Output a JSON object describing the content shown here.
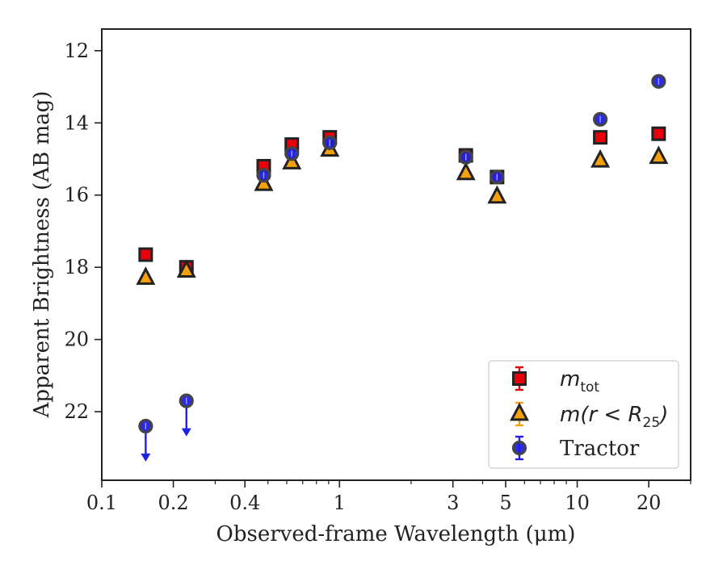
{
  "chart_data": {
    "type": "scatter",
    "xlabel": "Observed-frame Wavelength (μm)",
    "ylabel": "Apparent Brightness (AB mag)",
    "x_scale": "log",
    "xlim": [
      0.1,
      30
    ],
    "ylim": [
      23.9,
      11.4
    ],
    "y_inverted": true,
    "grid": false,
    "legend_position": "lower-right",
    "x_ticks": [
      {
        "value": 0.1,
        "label": "0.1"
      },
      {
        "value": 0.2,
        "label": "0.2"
      },
      {
        "value": 0.4,
        "label": "0.4"
      },
      {
        "value": 1,
        "label": "1"
      },
      {
        "value": 3,
        "label": "3"
      },
      {
        "value": 5,
        "label": "5"
      },
      {
        "value": 10,
        "label": "10"
      },
      {
        "value": 20,
        "label": "20"
      }
    ],
    "y_ticks": [
      {
        "value": 12,
        "label": "12"
      },
      {
        "value": 14,
        "label": "14"
      },
      {
        "value": 16,
        "label": "16"
      },
      {
        "value": 18,
        "label": "18"
      },
      {
        "value": 20,
        "label": "20"
      },
      {
        "value": 22,
        "label": "22"
      }
    ],
    "series": [
      {
        "name": "m_tot",
        "legend_main": "m",
        "legend_sub": "tot",
        "marker": "square",
        "color": "#e8000b",
        "edge_color": "#222222",
        "points": [
          {
            "x": 0.153,
            "y": 17.65
          },
          {
            "x": 0.227,
            "y": 18.0
          },
          {
            "x": 0.48,
            "y": 15.2
          },
          {
            "x": 0.63,
            "y": 14.6
          },
          {
            "x": 0.91,
            "y": 14.4
          },
          {
            "x": 3.4,
            "y": 14.9
          },
          {
            "x": 4.6,
            "y": 15.5
          },
          {
            "x": 12.5,
            "y": 14.4
          },
          {
            "x": 22.0,
            "y": 14.3
          }
        ]
      },
      {
        "name": "m(r < R_25)",
        "legend_main": "m(r < R",
        "legend_sub": "25",
        "legend_tail": ")",
        "marker": "triangle",
        "color": "#f5a00c",
        "edge_color": "#222222",
        "points": [
          {
            "x": 0.153,
            "y": 18.3
          },
          {
            "x": 0.227,
            "y": 18.1
          },
          {
            "x": 0.48,
            "y": 15.7
          },
          {
            "x": 0.63,
            "y": 15.1
          },
          {
            "x": 0.91,
            "y": 14.75
          },
          {
            "x": 3.4,
            "y": 15.4
          },
          {
            "x": 4.6,
            "y": 16.05
          },
          {
            "x": 12.5,
            "y": 15.05
          },
          {
            "x": 22.0,
            "y": 14.95
          }
        ]
      },
      {
        "name": "Tractor",
        "legend_main": "Tractor",
        "marker": "circle",
        "color": "#1f1fe6",
        "edge_color": "#444444",
        "points": [
          {
            "x": 0.153,
            "y": 22.4,
            "upper_limit": true
          },
          {
            "x": 0.227,
            "y": 21.7,
            "upper_limit": true
          },
          {
            "x": 0.48,
            "y": 15.45
          },
          {
            "x": 0.63,
            "y": 14.85
          },
          {
            "x": 0.91,
            "y": 14.55
          },
          {
            "x": 3.4,
            "y": 14.95
          },
          {
            "x": 4.6,
            "y": 15.5
          },
          {
            "x": 12.5,
            "y": 13.9
          },
          {
            "x": 22.0,
            "y": 12.85
          }
        ]
      }
    ]
  }
}
